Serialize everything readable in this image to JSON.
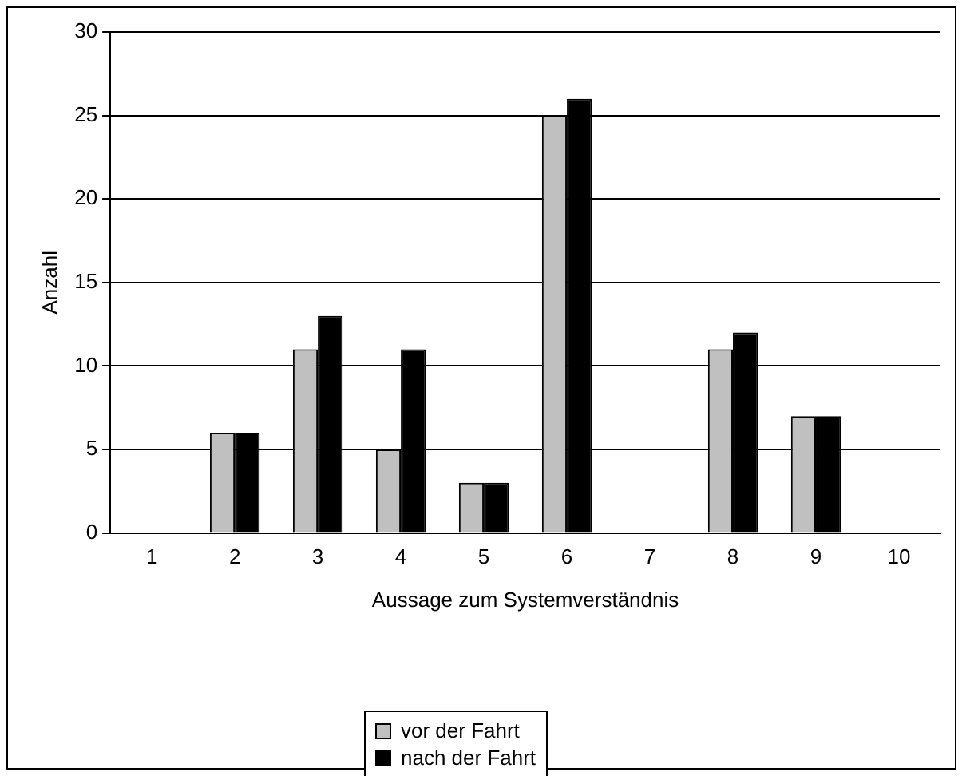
{
  "chart_data": {
    "type": "bar",
    "xlabel": "Aussage zum Systemverständnis",
    "ylabel": "Anzahl",
    "categories": [
      "1",
      "2",
      "3",
      "4",
      "5",
      "6",
      "7",
      "8",
      "9",
      "10"
    ],
    "series": [
      {
        "name": "vor der Fahrt",
        "color": "#c0c0c0",
        "values": [
          0,
          6,
          11,
          5,
          3,
          25,
          0,
          11,
          7,
          0
        ]
      },
      {
        "name": "nach der Fahrt",
        "color": "#000000",
        "values": [
          0,
          6,
          13,
          11,
          3,
          26,
          0,
          12,
          7,
          0
        ]
      }
    ],
    "ylim": [
      0,
      30
    ],
    "yticks": [
      0,
      5,
      10,
      15,
      20,
      25,
      30
    ],
    "grid": "y",
    "legend": "bottom"
  }
}
